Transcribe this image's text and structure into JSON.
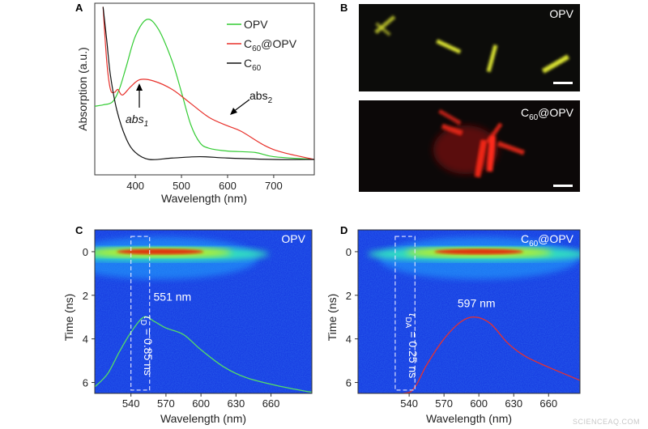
{
  "watermark": "SCIENCEAQ.COM",
  "chart_data": [
    {
      "panel": "A",
      "type": "line",
      "xlabel": "Wavelength (nm)",
      "ylabel": "Absorption (a.u.)",
      "xlim": [
        312,
        788
      ],
      "ylim": [
        0,
        1.12
      ],
      "xticks": [
        400,
        500,
        600,
        700
      ],
      "legend": "top-right",
      "series": [
        {
          "name": "OPV",
          "label": "OPV",
          "color": "#33cc33",
          "x": [
            312,
            330,
            350,
            365,
            380,
            400,
            425,
            450,
            480,
            500,
            520,
            540,
            560,
            600,
            660,
            700,
            788
          ],
          "y": [
            0.38,
            0.39,
            0.41,
            0.5,
            0.66,
            0.88,
            1.0,
            0.93,
            0.7,
            0.48,
            0.25,
            0.12,
            0.08,
            0.06,
            0.05,
            0.02,
            0.0
          ]
        },
        {
          "name": "C60@OPV",
          "label": "C",
          "sub": "60",
          "suffix": "@OPV",
          "color": "#e8302a",
          "x": [
            330,
            338,
            346,
            355,
            362,
            372,
            390,
            410,
            440,
            480,
            520,
            560,
            600,
            630,
            680,
            720,
            788
          ],
          "y": [
            1.09,
            0.7,
            0.5,
            0.48,
            0.5,
            0.46,
            0.52,
            0.57,
            0.56,
            0.5,
            0.4,
            0.3,
            0.24,
            0.2,
            0.1,
            0.05,
            0.0
          ]
        },
        {
          "name": "C60",
          "label": "C",
          "sub": "60",
          "suffix": "",
          "color": "#111111",
          "x": [
            330,
            338,
            346,
            360,
            380,
            400,
            430,
            480,
            540,
            600,
            700,
            788
          ],
          "y": [
            1.09,
            0.85,
            0.6,
            0.35,
            0.15,
            0.05,
            0.0,
            0.01,
            0.02,
            0.01,
            0.0,
            0.0
          ]
        }
      ],
      "annotations": [
        {
          "text": "abs",
          "sub": "1",
          "italic": true,
          "at": [
            425,
            0.57
          ]
        },
        {
          "text": "abs",
          "sub": "2",
          "italic": false,
          "at": [
            620,
            0.26
          ]
        }
      ]
    },
    {
      "panel": "B",
      "type": "image",
      "images": [
        {
          "label": "OPV",
          "color": "#d8e030"
        },
        {
          "label": "C",
          "sub": "60",
          "suffix": "@OPV",
          "color": "#ff2a1a"
        }
      ]
    },
    {
      "panel": "C",
      "type": "heatmap",
      "title": "OPV",
      "xlabel": "Wavelength (nm)",
      "ylabel": "Time (ns)",
      "xlim": [
        509,
        695
      ],
      "ylim": [
        -1,
        6.5
      ],
      "xticks": [
        540,
        570,
        600,
        630,
        660
      ],
      "yticks": [
        0,
        2,
        4,
        6
      ],
      "curve_color": "#55dd66",
      "curve": {
        "x": [
          509,
          520,
          530,
          540,
          551,
          560,
          570,
          585,
          600,
          620,
          640,
          670,
          695
        ],
        "y": [
          6.2,
          5.6,
          4.6,
          3.7,
          3.0,
          3.2,
          3.5,
          3.8,
          4.5,
          5.3,
          5.8,
          6.2,
          6.45
        ]
      },
      "window_nm": [
        540,
        556
      ],
      "peak_label": "551 nm",
      "lifetime_label": "τ",
      "lifetime_sub": "D",
      "lifetime_value": " = 0.85 ns",
      "hot_center_nm": 565
    },
    {
      "panel": "D",
      "type": "heatmap",
      "title": "C",
      "title_sub": "60",
      "title_suffix": "@OPV",
      "xlabel": "Wavelength (nm)",
      "ylabel": "Time (ns)",
      "xlim": [
        496,
        687
      ],
      "ylim": [
        -1,
        6.5
      ],
      "xticks": [
        540,
        570,
        600,
        630,
        660
      ],
      "yticks": [
        0,
        2,
        4,
        6
      ],
      "curve_color": "#e83030",
      "curve": {
        "x": [
          496,
          535,
          545,
          555,
          570,
          585,
          597,
          610,
          625,
          640,
          660,
          687
        ],
        "y": [
          6.5,
          6.5,
          6.2,
          5.2,
          4.0,
          3.2,
          3.0,
          3.3,
          4.2,
          4.8,
          5.3,
          5.9
        ]
      },
      "window_nm": [
        528,
        545
      ],
      "peak_label": "597 nm",
      "lifetime_label": "τ",
      "lifetime_sub": "DA",
      "lifetime_value": " = 0.25 ns",
      "hot_center_nm": 600
    }
  ]
}
